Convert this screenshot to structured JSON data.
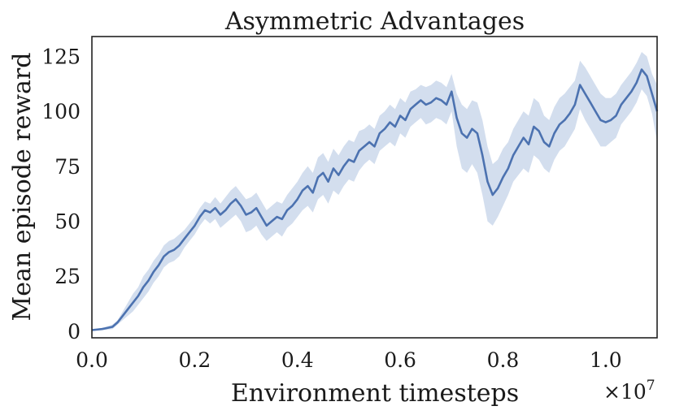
{
  "chart_data": {
    "type": "line",
    "title": "Asymmetric Advantages",
    "xlabel": "Environment timesteps",
    "ylabel": "Mean episode reward",
    "x_offset_label": "×10",
    "x_offset_exponent": "7",
    "xlim": [
      0.0,
      1.1
    ],
    "ylim": [
      -3,
      134
    ],
    "xticks": [
      {
        "value": 0.0,
        "label": "0.0"
      },
      {
        "value": 0.2,
        "label": "0.2"
      },
      {
        "value": 0.4,
        "label": "0.4"
      },
      {
        "value": 0.6,
        "label": "0.6"
      },
      {
        "value": 0.8,
        "label": "0.8"
      },
      {
        "value": 1.0,
        "label": "1.0"
      }
    ],
    "yticks": [
      {
        "value": 0,
        "label": "0"
      },
      {
        "value": 25,
        "label": "25"
      },
      {
        "value": 50,
        "label": "50"
      },
      {
        "value": 75,
        "label": "75"
      },
      {
        "value": 100,
        "label": "100"
      },
      {
        "value": 125,
        "label": "125"
      }
    ],
    "grid": false,
    "line_color": "#4c72b0",
    "band_color": "#c4d3e8",
    "series": [
      {
        "x": [
          0.0,
          0.02,
          0.04,
          0.05,
          0.06,
          0.07,
          0.08,
          0.09,
          0.1,
          0.11,
          0.12,
          0.13,
          0.14,
          0.15,
          0.16,
          0.17,
          0.18,
          0.19,
          0.2,
          0.21,
          0.22,
          0.23,
          0.24,
          0.25,
          0.26,
          0.27,
          0.28,
          0.29,
          0.3,
          0.31,
          0.32,
          0.33,
          0.34,
          0.35,
          0.36,
          0.37,
          0.38,
          0.39,
          0.4,
          0.41,
          0.42,
          0.43,
          0.44,
          0.45,
          0.46,
          0.47,
          0.48,
          0.49,
          0.5,
          0.51,
          0.52,
          0.53,
          0.54,
          0.55,
          0.56,
          0.57,
          0.58,
          0.59,
          0.6,
          0.61,
          0.62,
          0.63,
          0.64,
          0.65,
          0.66,
          0.67,
          0.68,
          0.69,
          0.7,
          0.71,
          0.72,
          0.73,
          0.74,
          0.75,
          0.76,
          0.77,
          0.78,
          0.79,
          0.8,
          0.81,
          0.82,
          0.83,
          0.84,
          0.85,
          0.86,
          0.87,
          0.88,
          0.89,
          0.9,
          0.91,
          0.92,
          0.93,
          0.94,
          0.95,
          0.96,
          0.97,
          0.98,
          0.99,
          1.0,
          1.01,
          1.02,
          1.03,
          1.04,
          1.05,
          1.06,
          1.07,
          1.08,
          1.09,
          1.1
        ],
        "y": [
          0.5,
          1,
          2,
          4,
          7,
          10,
          13,
          16,
          20,
          23,
          27,
          30,
          34,
          36,
          37,
          39,
          42,
          45,
          48,
          52,
          55,
          54,
          56,
          53,
          55,
          58,
          60,
          57,
          53,
          54,
          56,
          52,
          48,
          50,
          52,
          51,
          55,
          57,
          60,
          64,
          66,
          63,
          70,
          72,
          68,
          74,
          71,
          75,
          78,
          77,
          82,
          84,
          86,
          84,
          90,
          92,
          95,
          93,
          98,
          96,
          101,
          103,
          105,
          103,
          104,
          106,
          105,
          103,
          109,
          97,
          90,
          88,
          92,
          90,
          80,
          68,
          62,
          65,
          70,
          74,
          80,
          84,
          88,
          85,
          93,
          91,
          86,
          84,
          90,
          94,
          96,
          99,
          103,
          112,
          108,
          104,
          100,
          96,
          95,
          96,
          98,
          103,
          106,
          109,
          113,
          119,
          116,
          108,
          100
        ],
        "lower": [
          0.2,
          0.5,
          1,
          3,
          5,
          7,
          9,
          12,
          15,
          18,
          22,
          25,
          29,
          31,
          32,
          34,
          38,
          41,
          44,
          48,
          51,
          49,
          51,
          47,
          49,
          51,
          53,
          50,
          45,
          46,
          48,
          44,
          41,
          43,
          45,
          43,
          47,
          49,
          52,
          55,
          57,
          54,
          60,
          62,
          58,
          64,
          62,
          66,
          69,
          68,
          73,
          76,
          78,
          76,
          82,
          84,
          86,
          84,
          90,
          88,
          93,
          95,
          97,
          94,
          95,
          97,
          96,
          94,
          100,
          84,
          74,
          72,
          76,
          72,
          62,
          50,
          48,
          52,
          57,
          62,
          68,
          71,
          74,
          72,
          80,
          78,
          74,
          72,
          78,
          82,
          84,
          88,
          92,
          101,
          96,
          92,
          88,
          84,
          84,
          86,
          88,
          94,
          97,
          100,
          104,
          110,
          107,
          99,
          86
        ],
        "upper": [
          0.8,
          1.5,
          3,
          5,
          9,
          13,
          17,
          20,
          25,
          28,
          32,
          35,
          39,
          41,
          42,
          44,
          46,
          49,
          52,
          56,
          59,
          58,
          61,
          58,
          61,
          64,
          66,
          63,
          60,
          61,
          63,
          59,
          55,
          57,
          59,
          58,
          62,
          65,
          68,
          72,
          75,
          72,
          79,
          81,
          77,
          83,
          80,
          84,
          87,
          86,
          91,
          92,
          94,
          92,
          98,
          100,
          103,
          101,
          106,
          104,
          109,
          110,
          112,
          111,
          112,
          114,
          113,
          111,
          117,
          108,
          103,
          101,
          105,
          104,
          96,
          84,
          76,
          78,
          83,
          86,
          92,
          96,
          100,
          98,
          106,
          104,
          98,
          96,
          102,
          106,
          108,
          111,
          114,
          123,
          120,
          116,
          112,
          108,
          106,
          106,
          108,
          112,
          115,
          118,
          122,
          127,
          125,
          117,
          112
        ]
      }
    ]
  }
}
